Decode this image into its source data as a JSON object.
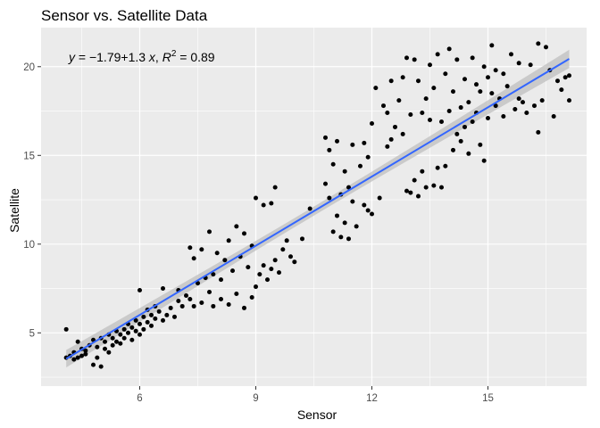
{
  "chart_data": {
    "type": "scatter",
    "title": "Sensor vs. Satellite Data",
    "xlabel": "Sensor",
    "ylabel": "Satellite",
    "xlim": [
      3.45,
      17.55
    ],
    "ylim": [
      2.0,
      22.2
    ],
    "x_ticks": [
      6,
      9,
      12,
      15
    ],
    "x_tick_labels": [
      "6",
      "9",
      "12",
      "15"
    ],
    "y_ticks": [
      5,
      10,
      15,
      20
    ],
    "y_tick_labels": [
      "5",
      "10",
      "15",
      "20"
    ],
    "grid": true,
    "background": "#ebebeb",
    "point_color": "#000000",
    "fit_color": "#3366ff",
    "band_color": "#bfbfbf",
    "regression": {
      "intercept": -1.79,
      "slope": 1.3,
      "r2": 0.89,
      "x_range": [
        4.1,
        17.1
      ],
      "annotation": {
        "y_var": "y",
        "equals": " = ",
        "eq_body": "−1.79+1.3 ",
        "x_var": "x",
        "sep": ", ",
        "r_var": "R",
        "r_sup": "2",
        "r2_value": " = 0.89"
      }
    },
    "points": [
      [
        4.1,
        5.2
      ],
      [
        4.1,
        3.6
      ],
      [
        4.2,
        3.7
      ],
      [
        4.3,
        3.5
      ],
      [
        4.3,
        3.9
      ],
      [
        4.4,
        4.5
      ],
      [
        4.4,
        3.6
      ],
      [
        4.5,
        4.1
      ],
      [
        4.5,
        3.7
      ],
      [
        4.6,
        4.0
      ],
      [
        4.6,
        3.8
      ],
      [
        4.7,
        4.3
      ],
      [
        4.8,
        3.2
      ],
      [
        4.8,
        4.6
      ],
      [
        4.9,
        3.6
      ],
      [
        4.9,
        4.2
      ],
      [
        5.0,
        3.1
      ],
      [
        5.0,
        4.7
      ],
      [
        5.1,
        4.1
      ],
      [
        5.1,
        4.5
      ],
      [
        5.2,
        3.9
      ],
      [
        5.2,
        4.9
      ],
      [
        5.3,
        4.3
      ],
      [
        5.3,
        4.7
      ],
      [
        5.4,
        4.5
      ],
      [
        5.4,
        5.1
      ],
      [
        5.5,
        4.9
      ],
      [
        5.5,
        4.4
      ],
      [
        5.6,
        5.2
      ],
      [
        5.6,
        4.7
      ],
      [
        5.7,
        5.5
      ],
      [
        5.7,
        5.0
      ],
      [
        5.8,
        4.6
      ],
      [
        5.8,
        5.3
      ],
      [
        5.9,
        5.7
      ],
      [
        5.9,
        5.1
      ],
      [
        6.0,
        7.4
      ],
      [
        6.0,
        5.5
      ],
      [
        6.0,
        4.9
      ],
      [
        6.1,
        5.9
      ],
      [
        6.1,
        5.2
      ],
      [
        6.2,
        6.3
      ],
      [
        6.2,
        5.6
      ],
      [
        6.3,
        6.0
      ],
      [
        6.3,
        5.4
      ],
      [
        6.4,
        6.5
      ],
      [
        6.4,
        5.8
      ],
      [
        6.5,
        6.2
      ],
      [
        6.6,
        5.7
      ],
      [
        6.6,
        7.5
      ],
      [
        6.7,
        6.0
      ],
      [
        6.8,
        6.4
      ],
      [
        6.9,
        5.9
      ],
      [
        7.0,
        6.8
      ],
      [
        7.0,
        7.4
      ],
      [
        7.1,
        6.5
      ],
      [
        7.2,
        7.1
      ],
      [
        7.3,
        6.9
      ],
      [
        7.3,
        9.8
      ],
      [
        7.4,
        6.5
      ],
      [
        7.4,
        9.2
      ],
      [
        7.5,
        7.8
      ],
      [
        7.6,
        6.7
      ],
      [
        7.6,
        9.7
      ],
      [
        7.7,
        8.1
      ],
      [
        7.8,
        10.7
      ],
      [
        7.8,
        7.3
      ],
      [
        7.9,
        8.3
      ],
      [
        7.9,
        6.5
      ],
      [
        8.0,
        9.5
      ],
      [
        8.1,
        8.0
      ],
      [
        8.1,
        6.9
      ],
      [
        8.2,
        9.1
      ],
      [
        8.3,
        6.6
      ],
      [
        8.3,
        10.2
      ],
      [
        8.4,
        8.5
      ],
      [
        8.5,
        7.2
      ],
      [
        8.5,
        11.0
      ],
      [
        8.6,
        9.3
      ],
      [
        8.7,
        6.4
      ],
      [
        8.7,
        10.6
      ],
      [
        8.8,
        8.7
      ],
      [
        8.9,
        7.0
      ],
      [
        8.9,
        9.9
      ],
      [
        9.0,
        7.6
      ],
      [
        9.0,
        12.6
      ],
      [
        9.1,
        8.3
      ],
      [
        9.2,
        12.2
      ],
      [
        9.2,
        8.8
      ],
      [
        9.3,
        8.0
      ],
      [
        9.4,
        12.3
      ],
      [
        9.4,
        8.6
      ],
      [
        9.5,
        9.1
      ],
      [
        9.5,
        13.2
      ],
      [
        9.6,
        8.4
      ],
      [
        9.7,
        9.7
      ],
      [
        9.8,
        10.2
      ],
      [
        9.9,
        9.3
      ],
      [
        10.0,
        9.0
      ],
      [
        10.2,
        10.3
      ],
      [
        10.4,
        12.0
      ],
      [
        10.8,
        13.4
      ],
      [
        10.8,
        16.0
      ],
      [
        10.9,
        12.6
      ],
      [
        10.9,
        15.3
      ],
      [
        11.0,
        10.7
      ],
      [
        11.0,
        14.5
      ],
      [
        11.1,
        11.6
      ],
      [
        11.1,
        15.8
      ],
      [
        11.2,
        12.8
      ],
      [
        11.2,
        10.4
      ],
      [
        11.3,
        14.1
      ],
      [
        11.3,
        11.2
      ],
      [
        11.4,
        13.2
      ],
      [
        11.4,
        10.3
      ],
      [
        11.5,
        15.6
      ],
      [
        11.5,
        12.4
      ],
      [
        11.6,
        11.0
      ],
      [
        11.7,
        14.4
      ],
      [
        11.8,
        15.7
      ],
      [
        11.8,
        12.2
      ],
      [
        11.9,
        11.9
      ],
      [
        11.9,
        14.9
      ],
      [
        12.0,
        16.8
      ],
      [
        12.0,
        11.7
      ],
      [
        12.1,
        18.8
      ],
      [
        12.2,
        12.6
      ],
      [
        12.3,
        17.8
      ],
      [
        12.4,
        15.5
      ],
      [
        12.4,
        17.4
      ],
      [
        12.5,
        19.2
      ],
      [
        12.5,
        15.9
      ],
      [
        12.6,
        16.6
      ],
      [
        12.7,
        18.1
      ],
      [
        12.8,
        19.4
      ],
      [
        12.8,
        16.2
      ],
      [
        12.9,
        13.0
      ],
      [
        12.9,
        20.5
      ],
      [
        13.0,
        12.9
      ],
      [
        13.0,
        17.3
      ],
      [
        13.1,
        20.4
      ],
      [
        13.1,
        13.6
      ],
      [
        13.2,
        12.7
      ],
      [
        13.2,
        19.2
      ],
      [
        13.3,
        17.4
      ],
      [
        13.3,
        14.1
      ],
      [
        13.4,
        18.2
      ],
      [
        13.4,
        13.2
      ],
      [
        13.5,
        20.1
      ],
      [
        13.5,
        17.0
      ],
      [
        13.6,
        13.3
      ],
      [
        13.6,
        18.8
      ],
      [
        13.7,
        14.3
      ],
      [
        13.7,
        20.7
      ],
      [
        13.8,
        16.9
      ],
      [
        13.8,
        13.2
      ],
      [
        13.9,
        19.6
      ],
      [
        13.9,
        14.4
      ],
      [
        14.0,
        17.5
      ],
      [
        14.0,
        21.0
      ],
      [
        14.1,
        18.6
      ],
      [
        14.1,
        15.3
      ],
      [
        14.2,
        16.2
      ],
      [
        14.2,
        20.4
      ],
      [
        14.3,
        17.7
      ],
      [
        14.3,
        15.8
      ],
      [
        14.4,
        19.3
      ],
      [
        14.4,
        16.6
      ],
      [
        14.5,
        18.0
      ],
      [
        14.5,
        15.1
      ],
      [
        14.6,
        20.5
      ],
      [
        14.6,
        16.9
      ],
      [
        14.7,
        19.0
      ],
      [
        14.7,
        17.4
      ],
      [
        14.8,
        15.6
      ],
      [
        14.8,
        18.6
      ],
      [
        14.9,
        14.7
      ],
      [
        14.9,
        20.0
      ],
      [
        15.0,
        19.4
      ],
      [
        15.0,
        17.1
      ],
      [
        15.1,
        21.2
      ],
      [
        15.1,
        18.5
      ],
      [
        15.2,
        17.8
      ],
      [
        15.2,
        19.8
      ],
      [
        15.3,
        18.2
      ],
      [
        15.4,
        19.6
      ],
      [
        15.4,
        17.2
      ],
      [
        15.5,
        18.9
      ],
      [
        15.6,
        20.7
      ],
      [
        15.7,
        17.6
      ],
      [
        15.8,
        20.2
      ],
      [
        15.8,
        18.2
      ],
      [
        15.9,
        18.0
      ],
      [
        16.0,
        17.4
      ],
      [
        16.1,
        20.1
      ],
      [
        16.2,
        17.8
      ],
      [
        16.3,
        16.3
      ],
      [
        16.3,
        21.3
      ],
      [
        16.4,
        18.1
      ],
      [
        16.5,
        21.1
      ],
      [
        16.6,
        19.8
      ],
      [
        16.7,
        17.2
      ],
      [
        16.8,
        19.2
      ],
      [
        16.9,
        18.7
      ],
      [
        17.0,
        19.4
      ],
      [
        17.1,
        18.1
      ],
      [
        17.1,
        19.5
      ]
    ]
  }
}
